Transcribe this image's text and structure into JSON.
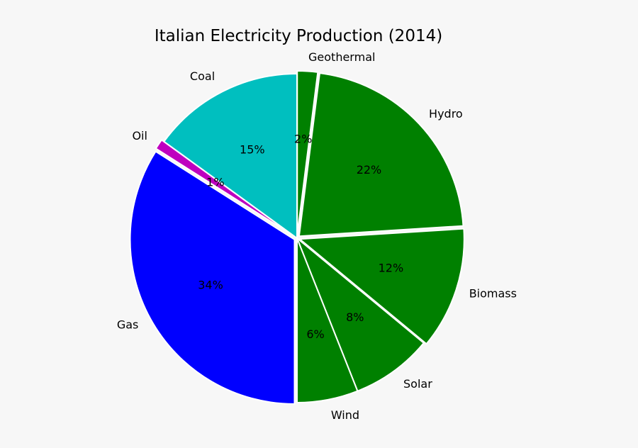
{
  "chart_data": {
    "type": "pie",
    "title": "Italian Electricity Production (2014)",
    "categories": [
      "Geothermal",
      "Hydro",
      "Biomass",
      "Solar",
      "Wind",
      "Gas",
      "Oil",
      "Coal"
    ],
    "values": [
      2,
      22,
      12,
      8,
      6,
      34,
      1,
      15
    ],
    "value_labels": [
      "2%",
      "22%",
      "12%",
      "8%",
      "6%",
      "34%",
      "1%",
      "15%"
    ],
    "colors": [
      "#008000",
      "#008000",
      "#008000",
      "#008000",
      "#008000",
      "#0000ff",
      "#bf00bf",
      "#00bfbf"
    ],
    "exploded": [
      "Geothermal",
      "Hydro",
      "Biomass",
      "Gas",
      "Oil"
    ],
    "start": "top",
    "direction": "clockwise"
  }
}
